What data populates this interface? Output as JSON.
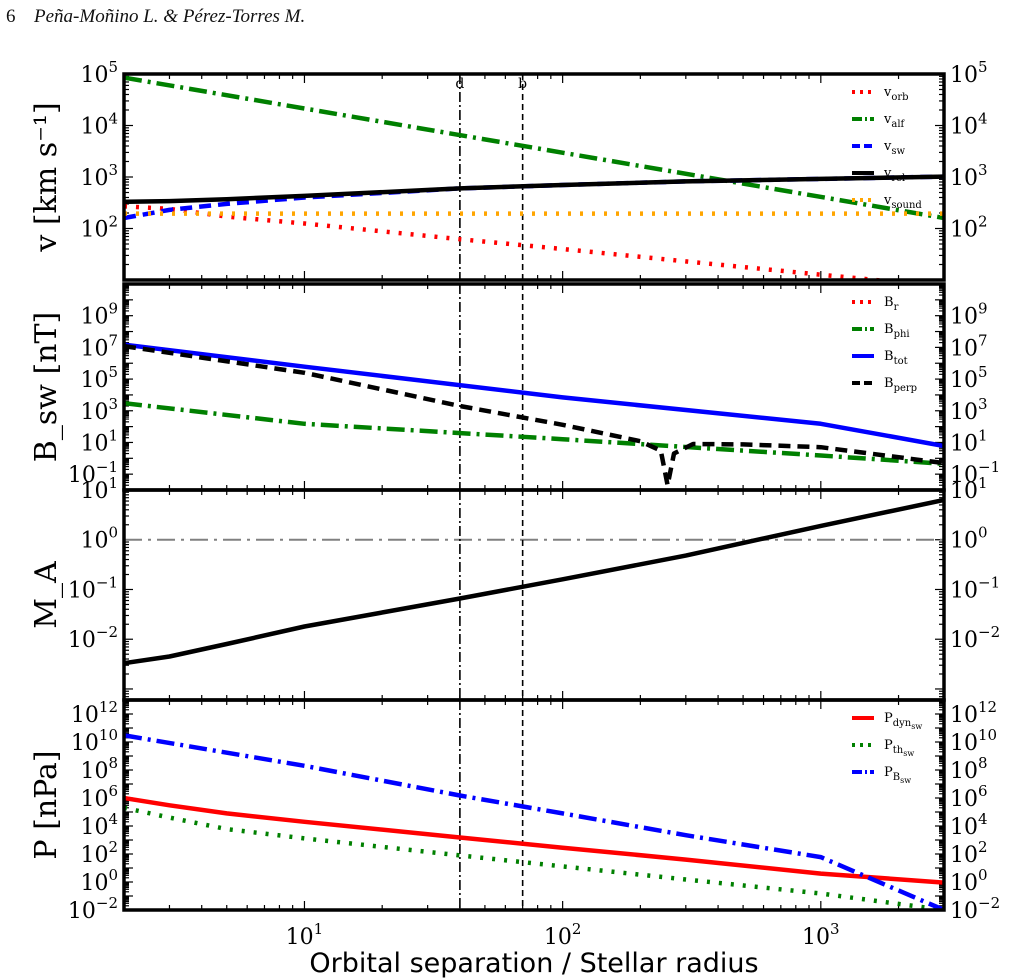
{
  "header": {
    "page_number": "6",
    "authors": "Peña-Moñino L. & Pérez-Torres M."
  },
  "chart_data": {
    "type": "line",
    "xlabel": "Orbital separation / Stellar radius",
    "xscale": "log",
    "xlim": [
      2,
      3000
    ],
    "x_ticks": [
      {
        "v": 10,
        "label": "10",
        "exp": "1"
      },
      {
        "v": 100,
        "label": "10",
        "exp": "2"
      },
      {
        "v": 1000,
        "label": "10",
        "exp": "3"
      }
    ],
    "vlines": [
      {
        "x": 40,
        "label": "d",
        "style": "dashdot"
      },
      {
        "x": 70,
        "label": "b",
        "style": "dashed"
      }
    ],
    "panels": [
      {
        "ylabel": "v [km s⁻¹]",
        "yscale": "log",
        "ylim": [
          10,
          100000
        ],
        "yticks": [
          {
            "v": 100,
            "label": "10",
            "exp": "2"
          },
          {
            "v": 1000,
            "label": "10",
            "exp": "3"
          },
          {
            "v": 10000,
            "label": "10",
            "exp": "4"
          },
          {
            "v": 100000,
            "label": "10",
            "exp": "5"
          }
        ],
        "legend": "top-right",
        "series": [
          {
            "name": "v",
            "sub": "orb",
            "color": "#ff0000",
            "style": "dotted",
            "x": [
              2,
              3,
              5,
              10,
              40,
              100,
              300,
              1000,
              1500,
              3000
            ],
            "y": [
              270,
              240,
              170,
              125,
              62,
              40,
              23,
              12.7,
              10.4,
              7.3
            ]
          },
          {
            "name": "v",
            "sub": "alf",
            "color": "#008000",
            "style": "dashdot",
            "x": [
              2,
              3000
            ],
            "y": [
              85000,
              160
            ]
          },
          {
            "name": "v",
            "sub": "sw",
            "color": "#0000ff",
            "style": "dashed",
            "x": [
              2,
              3,
              5,
              10,
              40,
              100,
              300,
              1000,
              3000
            ],
            "y": [
              160,
              230,
              300,
              400,
              600,
              700,
              820,
              920,
              1020
            ]
          },
          {
            "name": "v",
            "sub": "rel",
            "color": "#000000",
            "style": "solid",
            "x": [
              2,
              3,
              5,
              10,
              40,
              100,
              300,
              1000,
              3000
            ],
            "y": [
              330,
              340,
              370,
              430,
              600,
              700,
              820,
              920,
              1020
            ]
          },
          {
            "name": "v",
            "sub": "sound",
            "color": "#ffa500",
            "style": "dotted",
            "x": [
              2,
              3000
            ],
            "y": [
              195,
              195
            ]
          }
        ]
      },
      {
        "ylabel": "B_sw [nT]",
        "yscale": "log",
        "ylim": [
          0.01,
          100000000000
        ],
        "yticks": [
          {
            "v": 0.1,
            "label": "10",
            "exp": "−1"
          },
          {
            "v": 10,
            "label": "10",
            "exp": "1"
          },
          {
            "v": 1000,
            "label": "10",
            "exp": "3"
          },
          {
            "v": 100000,
            "label": "10",
            "exp": "5"
          },
          {
            "v": 10000000,
            "label": "10",
            "exp": "7"
          },
          {
            "v": 1000000000,
            "label": "10",
            "exp": "9"
          }
        ],
        "legend": "top-right",
        "series": [
          {
            "name": "B",
            "sub": "r",
            "color": "#ff0000",
            "style": "dotted",
            "x": [],
            "y": []
          },
          {
            "name": "B",
            "sub": "phi",
            "color": "#008000",
            "style": "dashdot",
            "x": [
              2,
              10,
              100,
              1000,
              3000
            ],
            "y": [
              3000,
              150,
              16,
              1.5,
              0.45
            ]
          },
          {
            "name": "B",
            "sub": "tot",
            "color": "#0000ff",
            "style": "solid",
            "x": [
              2,
              10,
              100,
              1000,
              3000
            ],
            "y": [
              15000000,
              600000,
              7000,
              150,
              6
            ]
          },
          {
            "name": "B",
            "sub": "perp",
            "color": "#000000",
            "style": "dashed",
            "x": [
              2,
              10,
              40,
              100,
              200,
              240,
              255,
              270,
              320,
              500,
              1000,
              3000
            ],
            "y": [
              12000000,
              250000,
              2000,
              130,
              12,
              3,
              0.02,
              2,
              8,
              7.5,
              5,
              0.5
            ]
          }
        ]
      },
      {
        "ylabel": "M_A",
        "yscale": "log",
        "ylim": [
          0.0006,
          10
        ],
        "yticks": [
          {
            "v": 0.01,
            "label": "10",
            "exp": "−2"
          },
          {
            "v": 0.1,
            "label": "10",
            "exp": "−1"
          },
          {
            "v": 1,
            "label": "10",
            "exp": "0"
          },
          {
            "v": 10,
            "label": "10",
            "exp": "1"
          }
        ],
        "hline": {
          "y": 1,
          "color": "#808080",
          "style": "dashdot"
        },
        "series": [
          {
            "name": "",
            "color": "#000000",
            "style": "solid",
            "x": [
              2,
              3,
              5,
              10,
              40,
              100,
              300,
              1000,
              3000
            ],
            "y": [
              0.0033,
              0.0045,
              0.008,
              0.018,
              0.066,
              0.16,
              0.48,
              1.9,
              6.3
            ]
          }
        ]
      },
      {
        "ylabel": "P [nPa]",
        "yscale": "log",
        "ylim": [
          0.01,
          10000000000000
        ],
        "yticks": [
          {
            "v": 0.01,
            "label": "10",
            "exp": "−2"
          },
          {
            "v": 1,
            "label": "10",
            "exp": "0"
          },
          {
            "v": 100,
            "label": "10",
            "exp": "2"
          },
          {
            "v": 10000,
            "label": "10",
            "exp": "4"
          },
          {
            "v": 1000000,
            "label": "10",
            "exp": "6"
          },
          {
            "v": 100000000,
            "label": "10",
            "exp": "8"
          },
          {
            "v": 10000000000,
            "label": "10",
            "exp": "10"
          },
          {
            "v": 1000000000000,
            "label": "10",
            "exp": "12"
          }
        ],
        "legend": "top-right",
        "series": [
          {
            "name": "P",
            "sub": "dyn",
            "subsub": "sw",
            "color": "#ff0000",
            "style": "solid",
            "x": [
              2,
              3,
              5,
              10,
              40,
              100,
              300,
              1000,
              3000
            ],
            "y": [
              1000000,
              300000,
              80000,
              20000,
              1500,
              280,
              40,
              4,
              0.9
            ]
          },
          {
            "name": "P",
            "sub": "th",
            "subsub": "sw",
            "color": "#008000",
            "style": "dotted",
            "x": [
              2,
              3,
              5,
              10,
              40,
              100,
              300,
              1000,
              3000
            ],
            "y": [
              200000,
              40000,
              6000,
              1300,
              80,
              13,
              1.5,
              0.15,
              0.01
            ]
          },
          {
            "name": "P",
            "sub": "B",
            "subsub": "sw",
            "color": "#0000ff",
            "style": "dashdot",
            "x": [
              2,
              10,
              40,
              100,
              300,
              1000,
              3000
            ],
            "y": [
              30000000000,
              200000000,
              1500000,
              80000,
              2200,
              60,
              0.01
            ]
          }
        ]
      }
    ]
  }
}
